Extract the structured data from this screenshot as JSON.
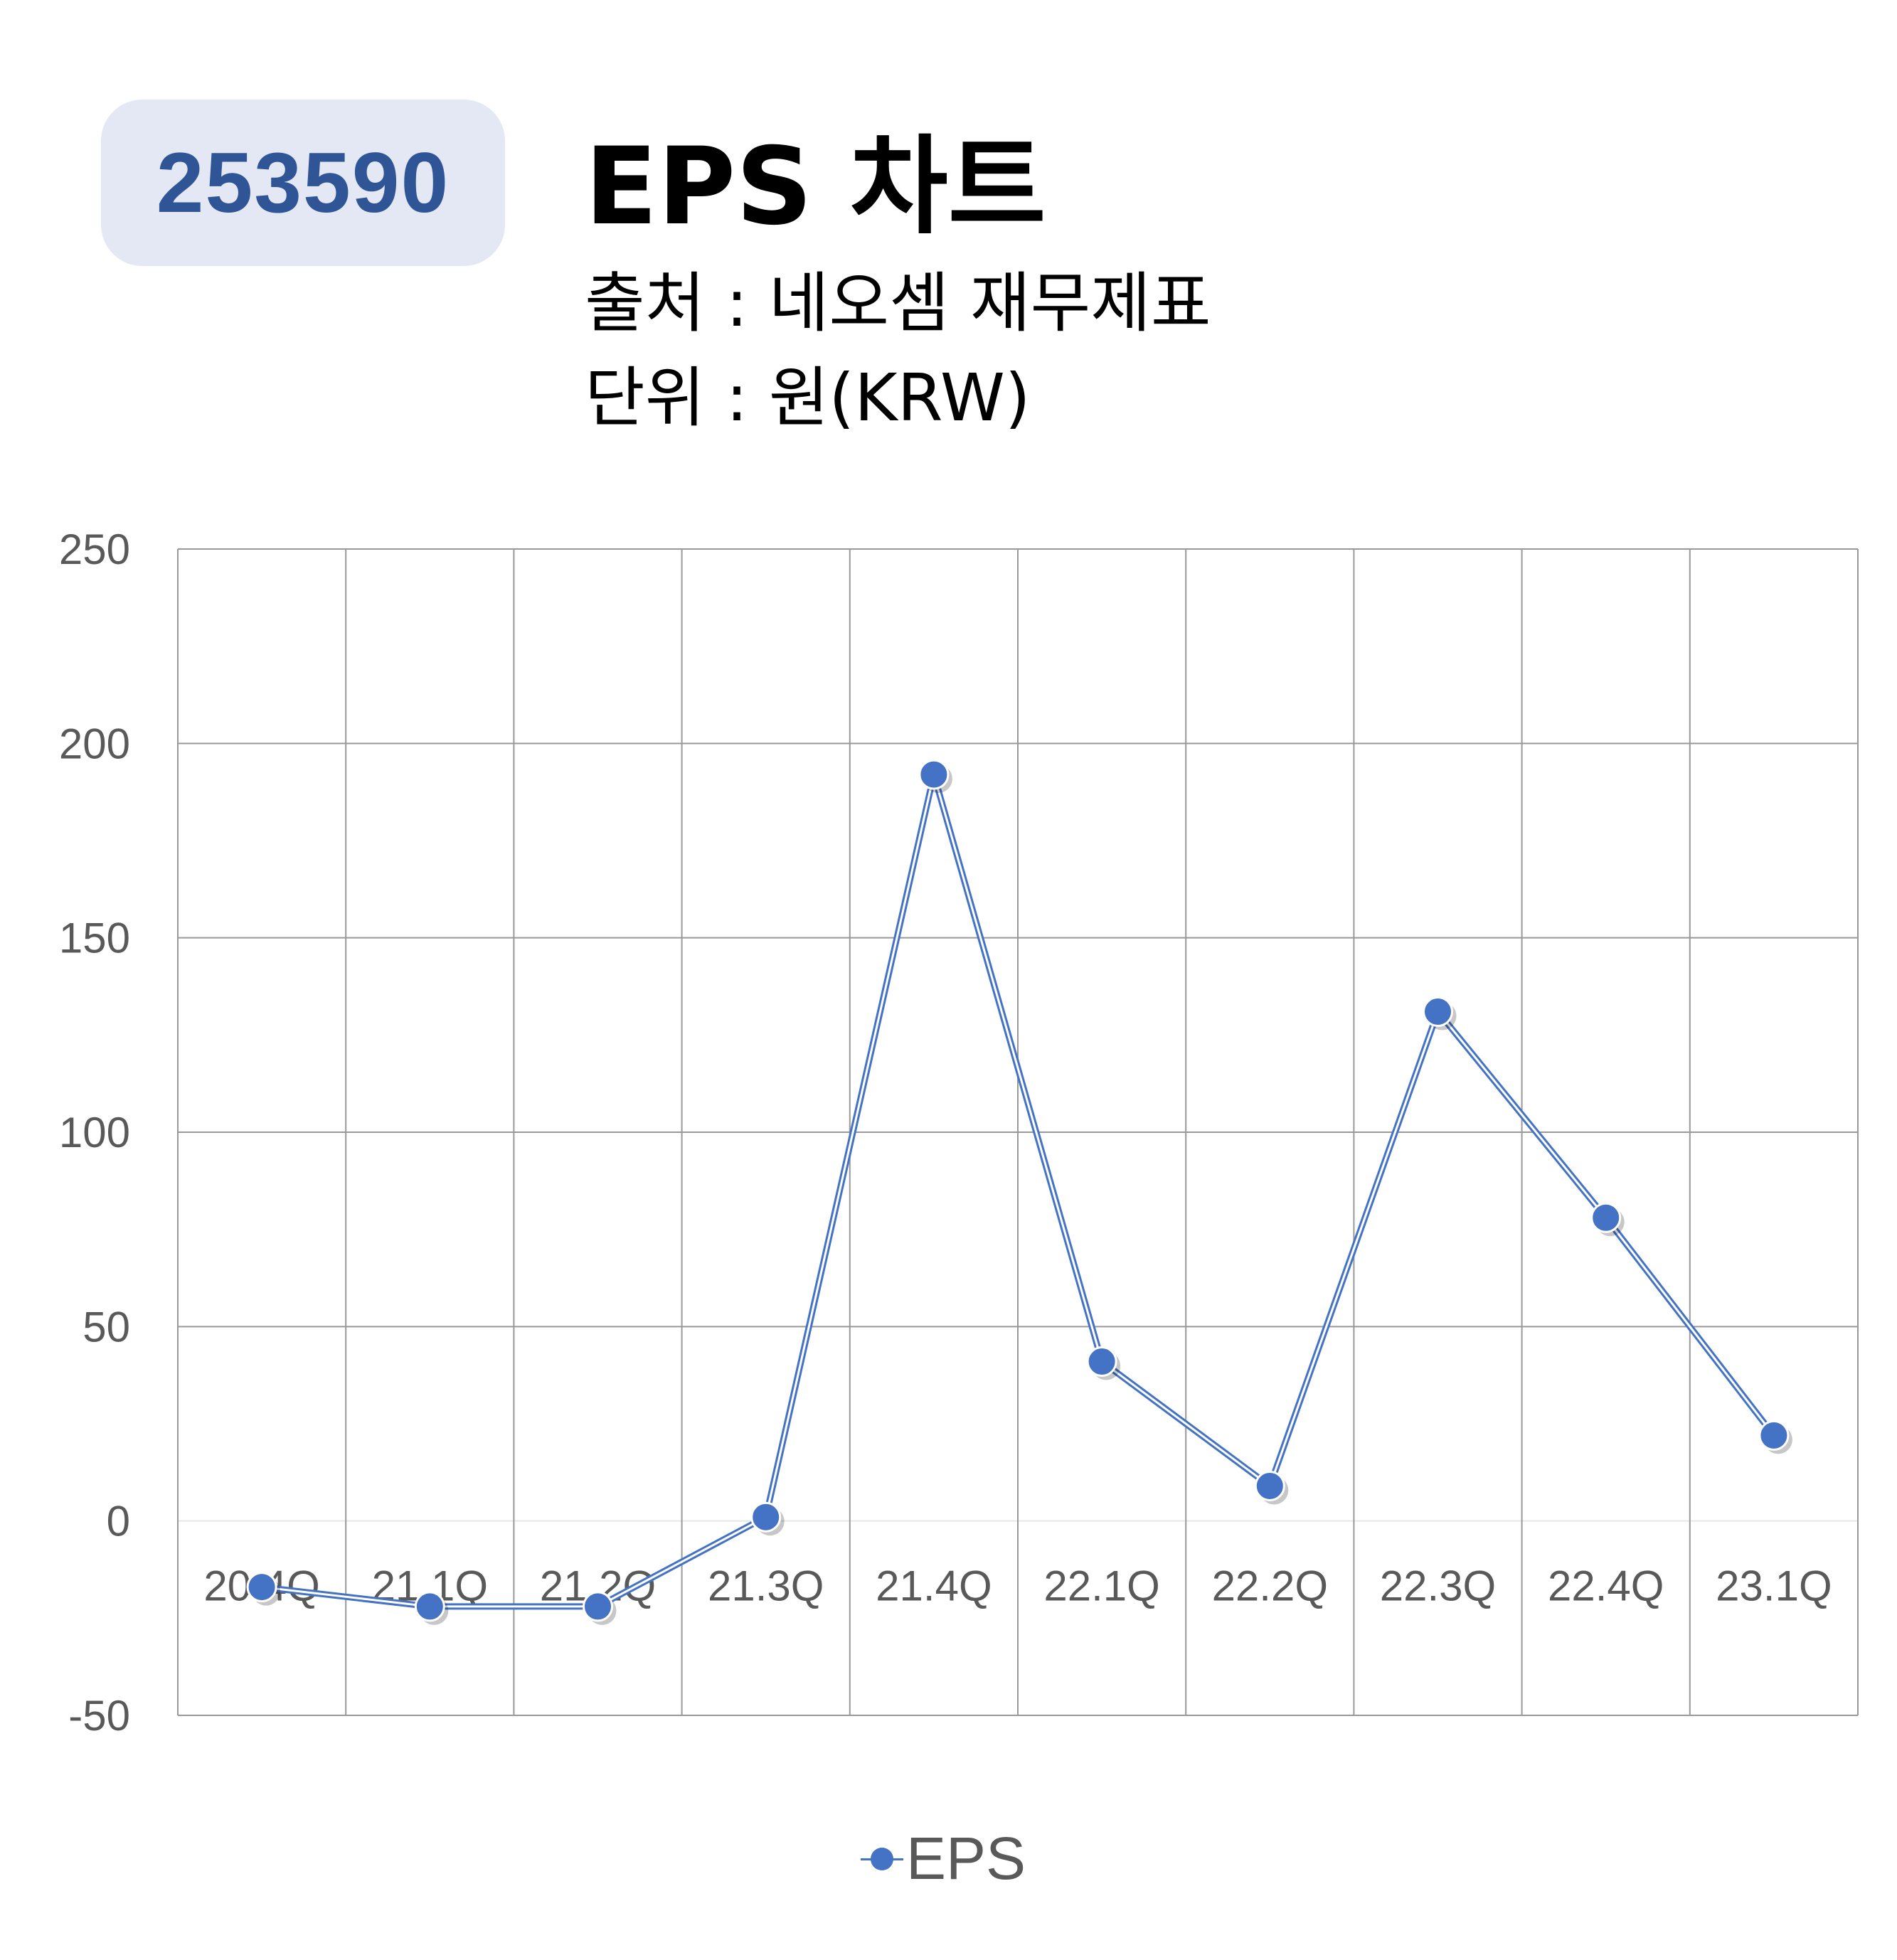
{
  "header": {
    "code": "253590",
    "title": "EPS 차트",
    "source": "출처 : 네오셈 재무제표",
    "unit": "단위 : 원(KRW)"
  },
  "colors": {
    "series": "#4472c4",
    "badge_bg": "#e3e8f4",
    "badge_text": "#2f5597",
    "grid": "#999999",
    "tick_text": "#595959"
  },
  "chart_data": {
    "type": "line",
    "categories": [
      "20.4Q",
      "21.1Q",
      "21.2Q",
      "21.3Q",
      "21.4Q",
      "22.1Q",
      "22.2Q",
      "22.3Q",
      "22.4Q",
      "23.1Q"
    ],
    "series": [
      {
        "name": "EPS",
        "values": [
          -17,
          -22,
          -22,
          1,
          192,
          41,
          9,
          131,
          78,
          22
        ]
      }
    ],
    "yticks": [
      250,
      200,
      150,
      100,
      50,
      0,
      -50
    ],
    "ylim": [
      -50,
      250
    ],
    "grid": true,
    "legend": "bottom-center"
  }
}
